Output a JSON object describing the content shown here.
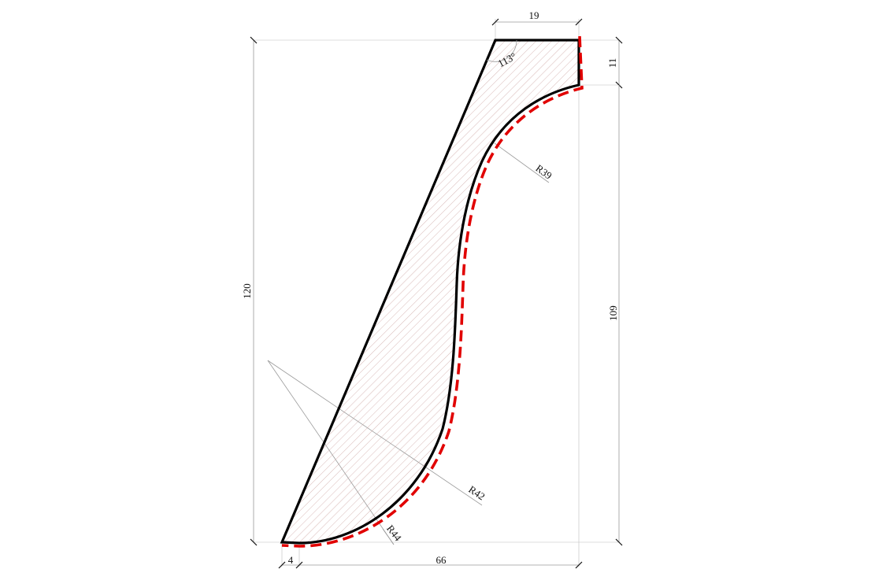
{
  "drawing": {
    "type": "molding-profile-section",
    "colors": {
      "outline": "#000000",
      "visible_edge": "#e10000",
      "hatch": "#c79a98",
      "dimension_lines": "#9a9a9a",
      "background": "#ffffff"
    }
  },
  "dimensions": {
    "top_width": "19",
    "top_height": "11",
    "total_height": "120",
    "lower_height": "109",
    "bottom_offset": "4",
    "bottom_width": "66",
    "angle": "113°"
  },
  "radii": {
    "upper": "R39",
    "middle": "R42",
    "lower": "R44"
  }
}
